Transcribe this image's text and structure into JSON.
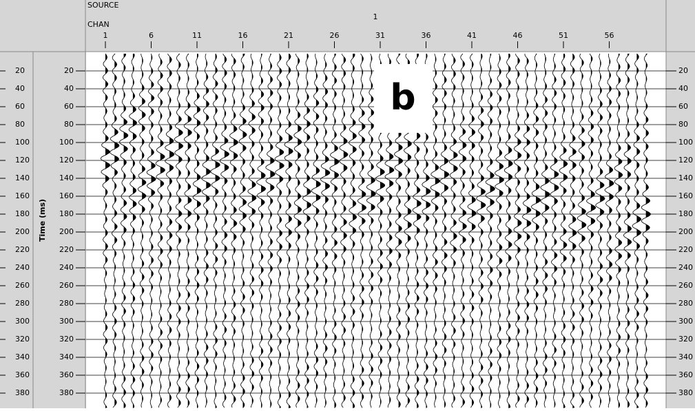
{
  "header": {
    "source_label": "SOURCE",
    "source_value": "1",
    "chan_label": "CHAN",
    "channel_ticks": [
      1,
      6,
      11,
      16,
      21,
      26,
      31,
      36,
      41,
      46,
      51,
      56
    ]
  },
  "time_axis": {
    "label": "Time (ms)",
    "ticks": [
      20,
      40,
      60,
      80,
      100,
      120,
      140,
      160,
      180,
      200,
      220,
      240,
      260,
      280,
      300,
      320,
      340,
      360,
      380
    ]
  },
  "panel_label": "b"
}
